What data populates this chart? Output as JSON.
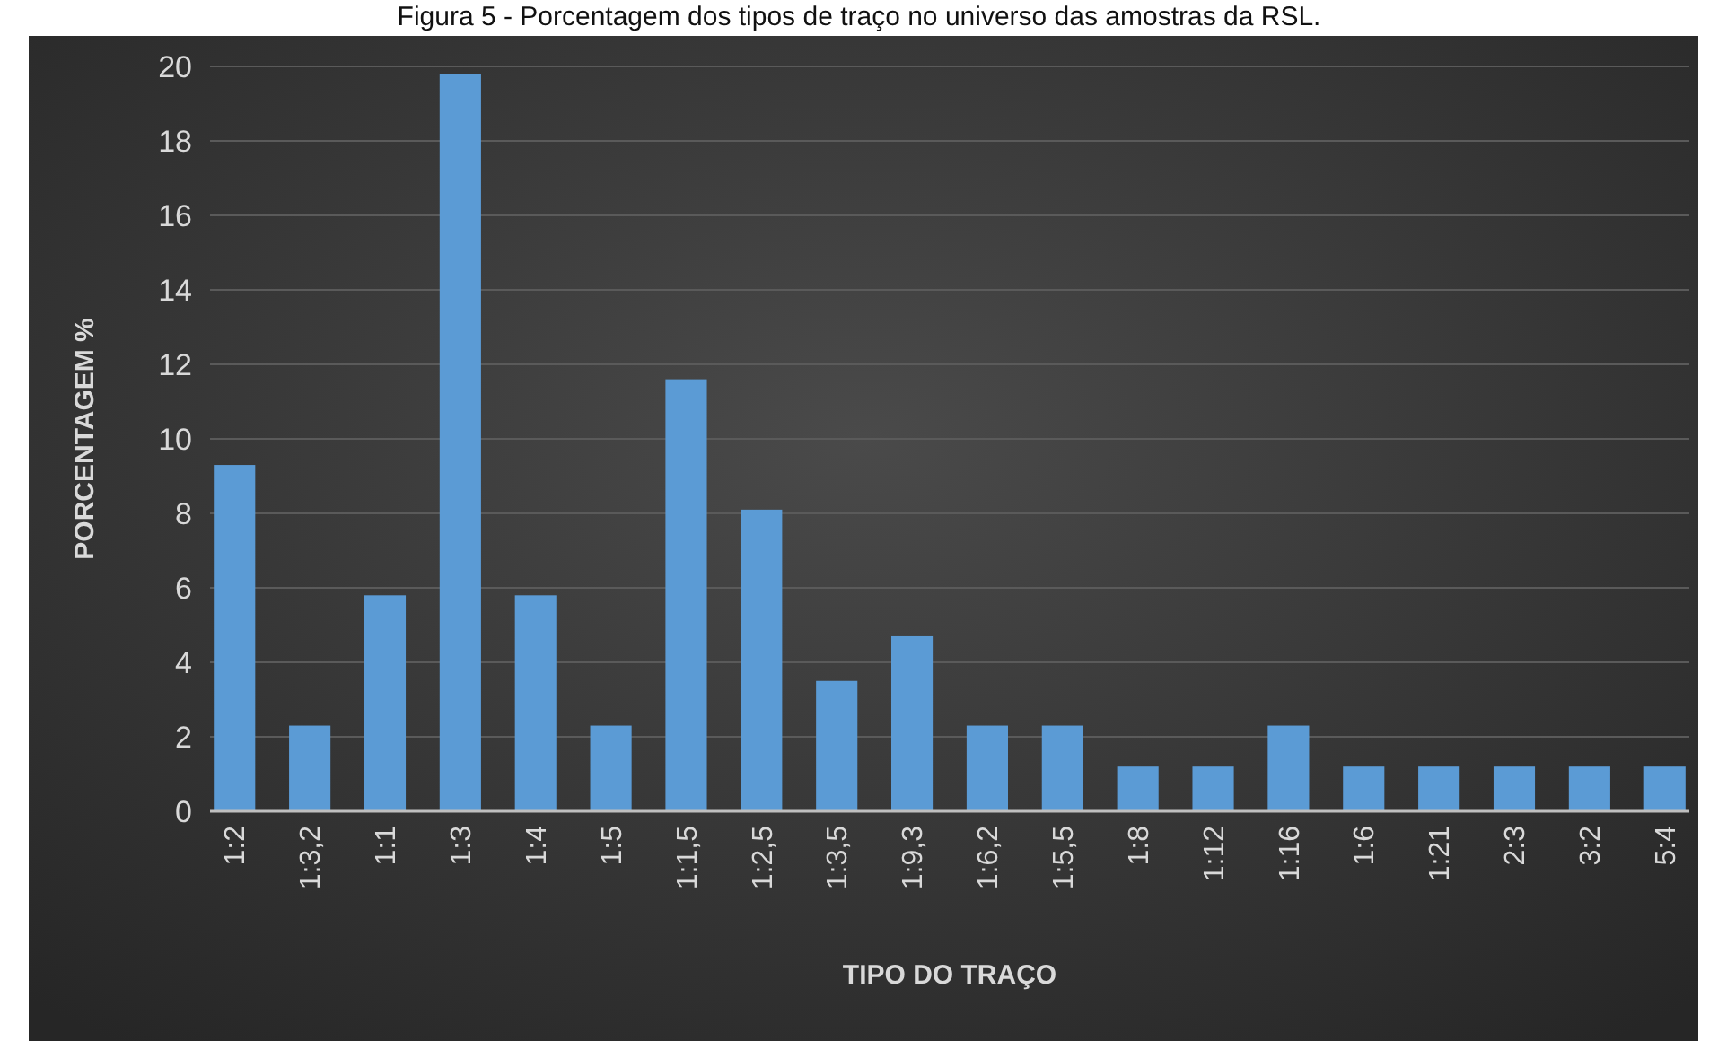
{
  "chart_data": {
    "type": "bar",
    "title": "Figura 5 - Porcentagem dos tipos de traço no universo das amostras da RSL.",
    "xlabel": "TIPO DO TRAÇO",
    "ylabel": "PORCENTAGEM %",
    "categories": [
      "1:2",
      "1:3,2",
      "1:1",
      "1:3",
      "1:4",
      "1:5",
      "1:1,5",
      "1:2,5",
      "1:3,5",
      "1:9,3",
      "1:6,2",
      "1:5,5",
      "1:8",
      "1:12",
      "1:16",
      "1:6",
      "1:21",
      "2:3",
      "3:2",
      "5:4"
    ],
    "values": [
      9.3,
      2.3,
      5.8,
      19.8,
      5.8,
      2.3,
      11.6,
      8.1,
      3.5,
      4.7,
      2.3,
      2.3,
      1.2,
      1.2,
      2.3,
      1.2,
      1.2,
      1.2,
      1.2,
      1.2
    ],
    "color": "#5b9bd5",
    "ylim": [
      0,
      20
    ],
    "yticks": [
      0,
      2,
      4,
      6,
      8,
      10,
      12,
      14,
      16,
      18,
      20
    ],
    "grid": "y"
  }
}
